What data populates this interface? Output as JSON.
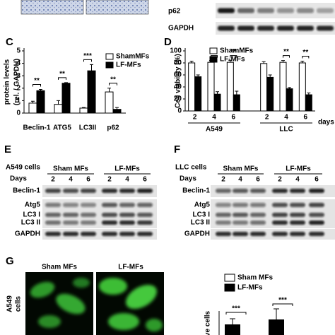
{
  "top_blot": {
    "rows": [
      "p62",
      "GAPDH"
    ]
  },
  "chart_data": [
    {
      "type": "bar",
      "panel": "C",
      "y_label": [
        "protein levels",
        "(rel. / GAPDH)"
      ],
      "categories": [
        "Beclin-1",
        "ATG5",
        "LC3II",
        "p62"
      ],
      "series": [
        {
          "name": "ShamMFs",
          "color": "#ffffff",
          "values": [
            0.8,
            0.7,
            0.4,
            1.7
          ],
          "errors": [
            0.15,
            0.3,
            0.05,
            0.3
          ]
        },
        {
          "name": "LF-MFs",
          "color": "#000000",
          "values": [
            1.8,
            2.4,
            3.4,
            0.3
          ],
          "errors": [
            0.1,
            0.05,
            0.5,
            0.15
          ]
        }
      ],
      "annotations": [
        "**",
        "**",
        "***",
        "**"
      ],
      "ylim": [
        0,
        5
      ],
      "yticks": [
        0,
        1,
        2,
        3,
        4,
        5
      ]
    },
    {
      "type": "bar",
      "panel": "D",
      "y_label": [
        "Cell viability (%)"
      ],
      "categories": [
        "2",
        "4",
        "6",
        "2",
        "4",
        "6"
      ],
      "groups": [
        "A549",
        "LLC"
      ],
      "x_unit": "days",
      "series": [
        {
          "name": "ShamMFs",
          "color": "#ffffff",
          "values": [
            80,
            81,
            81,
            79,
            81,
            80
          ],
          "errors": [
            3,
            3,
            3,
            3,
            3,
            3
          ]
        },
        {
          "name": "LF-MFs",
          "color": "#000000",
          "values": [
            57,
            28,
            27,
            56,
            37,
            27
          ],
          "errors": [
            3,
            4,
            6,
            4,
            2,
            3
          ]
        }
      ],
      "annotations": [
        null,
        "**",
        "**",
        null,
        "**",
        "**"
      ],
      "ylim": [
        0,
        100
      ],
      "yticks": [
        0,
        20,
        40,
        60,
        80,
        100
      ]
    }
  ],
  "panel_e": {
    "letter": "E",
    "cell_line": "A549 cells",
    "days_label": "Days",
    "groups": [
      "Sham MFs",
      "LF-MFs"
    ],
    "days": [
      "2",
      "4",
      "6",
      "2",
      "4",
      "6"
    ],
    "rows": [
      "Beclin-1",
      "Atg5",
      "LC3 I",
      "LC3 II",
      "GAPDH"
    ]
  },
  "panel_f": {
    "letter": "F",
    "cell_line": "LLC cells",
    "days_label": "Days",
    "groups": [
      "Sham MFs",
      "LF-MFs"
    ],
    "days": [
      "2",
      "4",
      "6",
      "2",
      "4",
      "6"
    ],
    "rows": [
      "Beclin-1",
      "Atg5",
      "LC3 I",
      "LC3 II",
      "GAPDH"
    ]
  },
  "panel_g": {
    "letter": "G",
    "groups": [
      "Sham MFs",
      "LF-MFs"
    ],
    "cell_line": [
      "A549",
      "cells"
    ],
    "legend": [
      "Sham MFs",
      "LF-MFs"
    ],
    "significance": [
      "***",
      "***"
    ],
    "y_label_fragment": "ve cells"
  }
}
